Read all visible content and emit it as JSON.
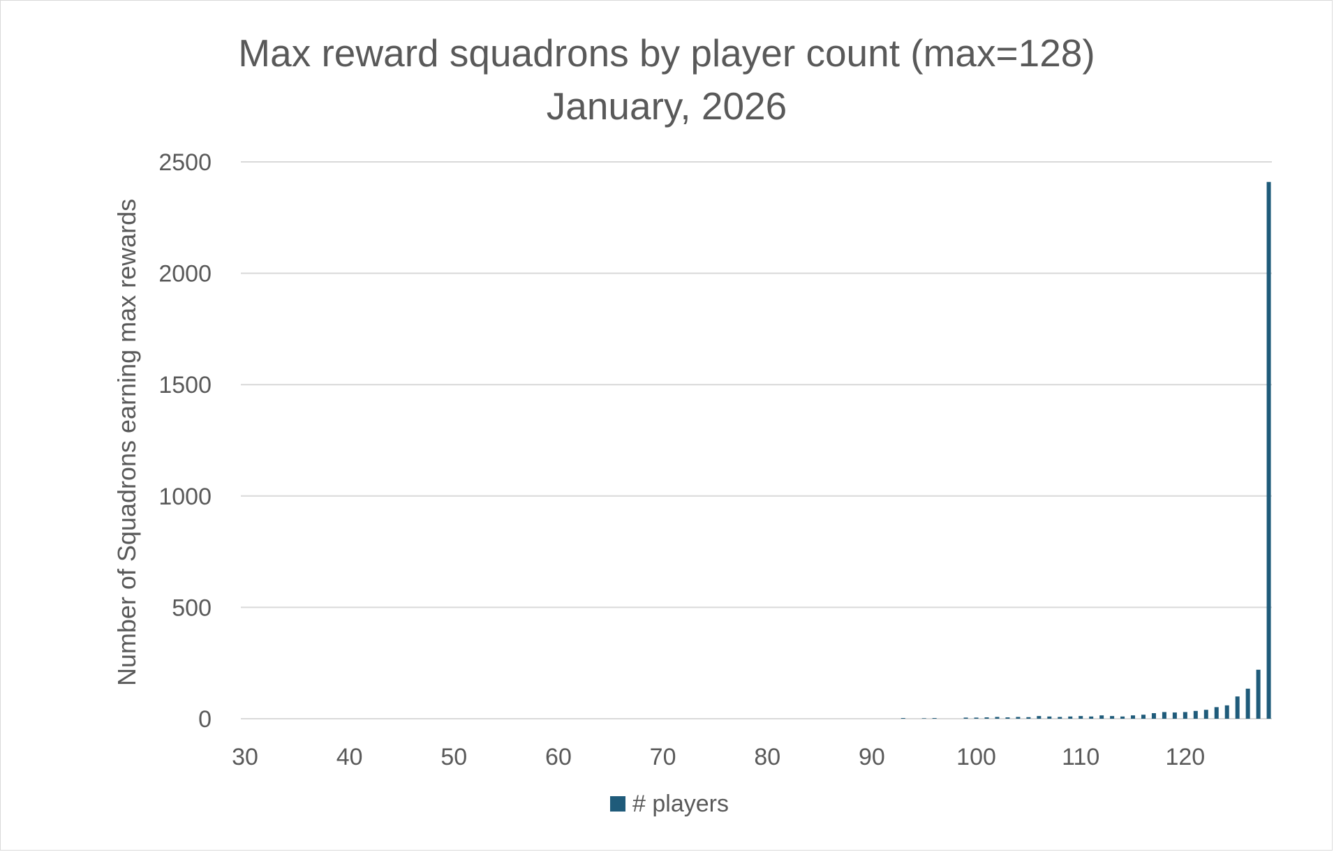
{
  "chart_data": {
    "type": "bar",
    "title": "Max reward squadrons by player count (max=128)",
    "subtitle": "January, 2026",
    "ylabel": "Number of Squadrons earning max rewards",
    "xlabel": "",
    "xlim": [
      30,
      128
    ],
    "ylim": [
      0,
      2500
    ],
    "x_ticks": [
      "30",
      "40",
      "50",
      "60",
      "70",
      "80",
      "90",
      "100",
      "110",
      "120"
    ],
    "y_ticks": [
      "0",
      "500",
      "1000",
      "1500",
      "2000",
      "2500"
    ],
    "grid": true,
    "legend_position": "bottom",
    "color": "#1f5b7a",
    "series": [
      {
        "name": "# players",
        "x": [
          93,
          95,
          96,
          99,
          100,
          101,
          102,
          103,
          104,
          105,
          106,
          107,
          108,
          109,
          110,
          111,
          112,
          113,
          114,
          115,
          116,
          117,
          118,
          119,
          120,
          121,
          122,
          123,
          124,
          125,
          126,
          127,
          128
        ],
        "values": [
          3,
          2,
          3,
          5,
          5,
          6,
          8,
          6,
          8,
          7,
          12,
          10,
          8,
          10,
          12,
          10,
          15,
          12,
          10,
          15,
          18,
          25,
          30,
          28,
          30,
          35,
          40,
          52,
          60,
          100,
          135,
          220,
          2410
        ]
      }
    ]
  }
}
